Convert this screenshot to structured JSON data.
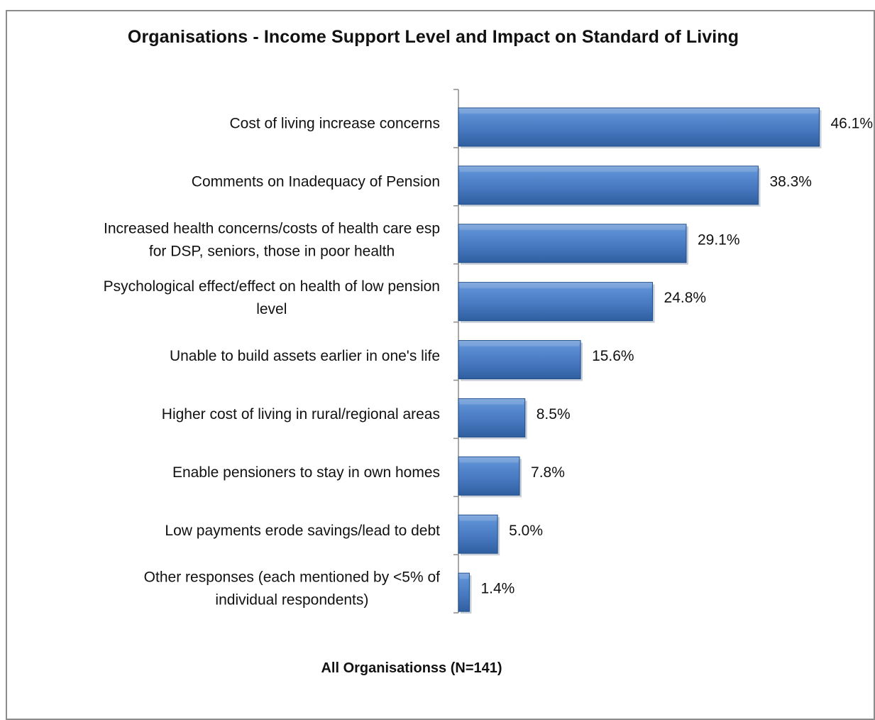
{
  "chart_data": {
    "type": "bar",
    "orientation": "horizontal",
    "title": "Organisations - Income Support Level and Impact on Standard of Living",
    "xlabel": "All Organisationss (N=141)",
    "ylabel": "",
    "categories": [
      "Cost of living increase concerns",
      "Comments on Inadequacy of Pension",
      "Increased health concerns/costs of health care esp for DSP, seniors, those in poor health",
      "Psychological effect/effect on health of low pension level",
      "Unable to build assets earlier in one's life",
      "Higher cost of living in rural/regional areas",
      "Enable pensioners to stay in own homes",
      "Low payments erode savings/lead to debt",
      "Other responses (each mentioned by <5% of individual respondents)"
    ],
    "category_lines": [
      [
        "Cost of living increase concerns"
      ],
      [
        "Comments on Inadequacy of Pension"
      ],
      [
        "Increased health concerns/costs of health care esp",
        "for DSP, seniors, those in poor health"
      ],
      [
        "Psychological effect/effect on health of low pension",
        "level"
      ],
      [
        "Unable to build assets earlier in one's life"
      ],
      [
        "Higher cost of living in rural/regional areas"
      ],
      [
        "Enable pensioners to stay in own homes"
      ],
      [
        "Low payments erode savings/lead to debt"
      ],
      [
        "Other responses (each mentioned by <5% of",
        "individual respondents)"
      ]
    ],
    "values": [
      46.1,
      38.3,
      29.1,
      24.8,
      15.6,
      8.5,
      7.8,
      5.0,
      1.4
    ],
    "value_labels": [
      "46.1%",
      "38.3%",
      "29.1%",
      "24.8%",
      "15.6%",
      "8.5%",
      "7.8%",
      "5.0%",
      "1.4%"
    ],
    "xlim": [
      0,
      50
    ],
    "grid": false,
    "legend": "none",
    "colors": {
      "bar": "#4a7ebb",
      "bar_dark": "#1f4e8c",
      "bar_light": "#7fa6dc",
      "axis": "#8c8c8c"
    }
  }
}
